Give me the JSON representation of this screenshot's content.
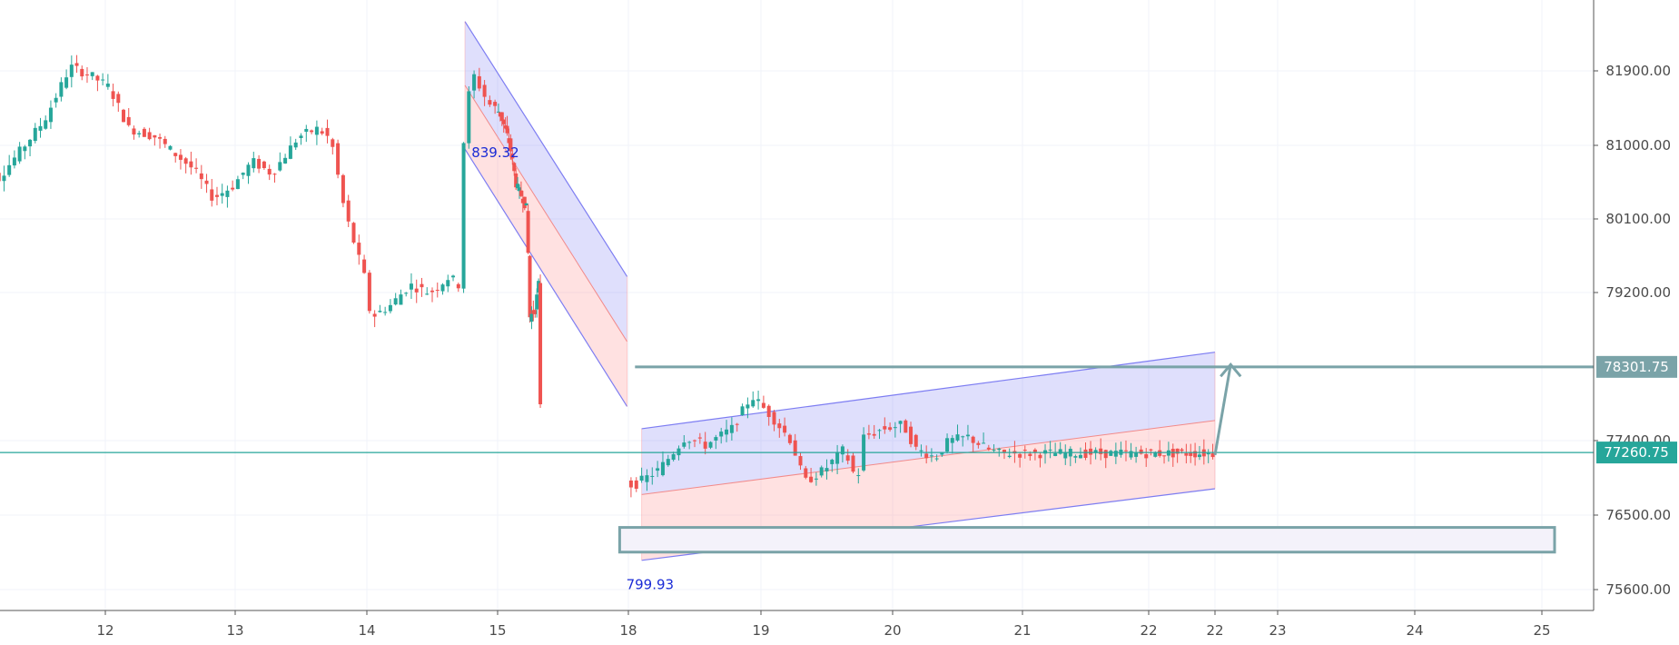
{
  "chart_data": {
    "type": "candlestick",
    "x_ticks": [
      "12",
      "13",
      "14",
      "15",
      "18",
      "19",
      "20",
      "21",
      "22",
      "22",
      "23",
      "24",
      "25"
    ],
    "y_ticks": [
      "81900.00",
      "81000.00",
      "80100.00",
      "79200.00",
      "77400.00",
      "76500.00",
      "75600.00"
    ],
    "ylim": [
      75350,
      82700
    ],
    "grid": true,
    "current_price": {
      "label": "77260.75",
      "value": 77260.75
    },
    "target_price": {
      "label": "78301.75",
      "value": 78301.75
    },
    "annotations": [
      {
        "text": "839.32",
        "x": 14.8,
        "y": 80850
      },
      {
        "text": "799.93",
        "x": 17.95,
        "y": 75600
      }
    ],
    "descending_channel": {
      "start": {
        "x": 14.75,
        "upper": 82500,
        "lower": 80950
      },
      "end": {
        "x": 17.97,
        "upper": 79400,
        "lower": 77820
      }
    },
    "ascending_channel": {
      "start": {
        "x": 18.1,
        "upper": 77550,
        "lower": 75950
      },
      "end": {
        "x": 22.6,
        "upper": 78480,
        "lower": 76820
      }
    },
    "support_zone": {
      "x0": 17.8,
      "x1": 25.1,
      "y_top": 76350,
      "y_bottom": 76050
    },
    "projection_arrow": {
      "x0": 22.6,
      "y0": 77230,
      "x1": 22.7,
      "y1": 78330
    },
    "up_color": "#26a69a",
    "down_color": "#ef5350",
    "channel_upper_fill": "#6f6ff0",
    "channel_lower_fill": "#ff8a8a",
    "level_line_color": "#7aa3a8",
    "current_line_color": "#26a69a",
    "annotation_color": "#1a2bd6",
    "price_anchors": [
      [
        11.0,
        80800
      ],
      [
        11.2,
        80600
      ],
      [
        11.35,
        80900
      ],
      [
        11.55,
        81300
      ],
      [
        11.75,
        81950
      ],
      [
        11.9,
        81850
      ],
      [
        12.05,
        81700
      ],
      [
        12.2,
        81200
      ],
      [
        12.4,
        81100
      ],
      [
        12.55,
        80900
      ],
      [
        12.7,
        80700
      ],
      [
        12.85,
        80350
      ],
      [
        13.0,
        80500
      ],
      [
        13.15,
        80800
      ],
      [
        13.3,
        80650
      ],
      [
        13.5,
        81100
      ],
      [
        13.65,
        81200
      ],
      [
        13.75,
        81050
      ],
      [
        13.85,
        80200
      ],
      [
        14.0,
        79400
      ],
      [
        14.05,
        78900
      ],
      [
        14.2,
        79050
      ],
      [
        14.35,
        79300
      ],
      [
        14.5,
        79200
      ],
      [
        14.65,
        79400
      ],
      [
        14.72,
        79300
      ],
      [
        14.75,
        80900
      ],
      [
        14.82,
        81900
      ],
      [
        14.95,
        81500
      ],
      [
        15.1,
        81350
      ],
      [
        15.3,
        81000
      ],
      [
        15.45,
        80500
      ],
      [
        15.6,
        80350
      ],
      [
        15.7,
        80200
      ],
      [
        15.75,
        78900
      ],
      [
        15.88,
        79000
      ],
      [
        15.96,
        79300
      ],
      [
        15.98,
        78100
      ],
      [
        16.05,
        77300
      ],
      [
        16.2,
        77050
      ],
      [
        16.45,
        76800
      ],
      [
        16.55,
        77100
      ],
      [
        16.7,
        76300
      ],
      [
        16.95,
        76800
      ],
      [
        17.1,
        76900
      ],
      [
        17.3,
        76700
      ],
      [
        17.45,
        76800
      ],
      [
        17.7,
        76900
      ],
      [
        17.9,
        77100
      ],
      [
        18.05,
        76850
      ],
      [
        18.25,
        77050
      ],
      [
        18.45,
        77450
      ],
      [
        18.6,
        77350
      ],
      [
        18.8,
        77550
      ],
      [
        18.95,
        77950
      ],
      [
        19.1,
        77700
      ],
      [
        19.25,
        77400
      ],
      [
        19.35,
        76900
      ],
      [
        19.5,
        77050
      ],
      [
        19.65,
        77300
      ],
      [
        19.75,
        76900
      ],
      [
        19.8,
        77450
      ],
      [
        19.95,
        77550
      ],
      [
        20.1,
        77600
      ],
      [
        20.2,
        77300
      ],
      [
        20.35,
        77200
      ],
      [
        20.45,
        77400
      ],
      [
        20.6,
        77450
      ],
      [
        20.75,
        77300
      ],
      [
        20.85,
        77250
      ]
    ]
  }
}
